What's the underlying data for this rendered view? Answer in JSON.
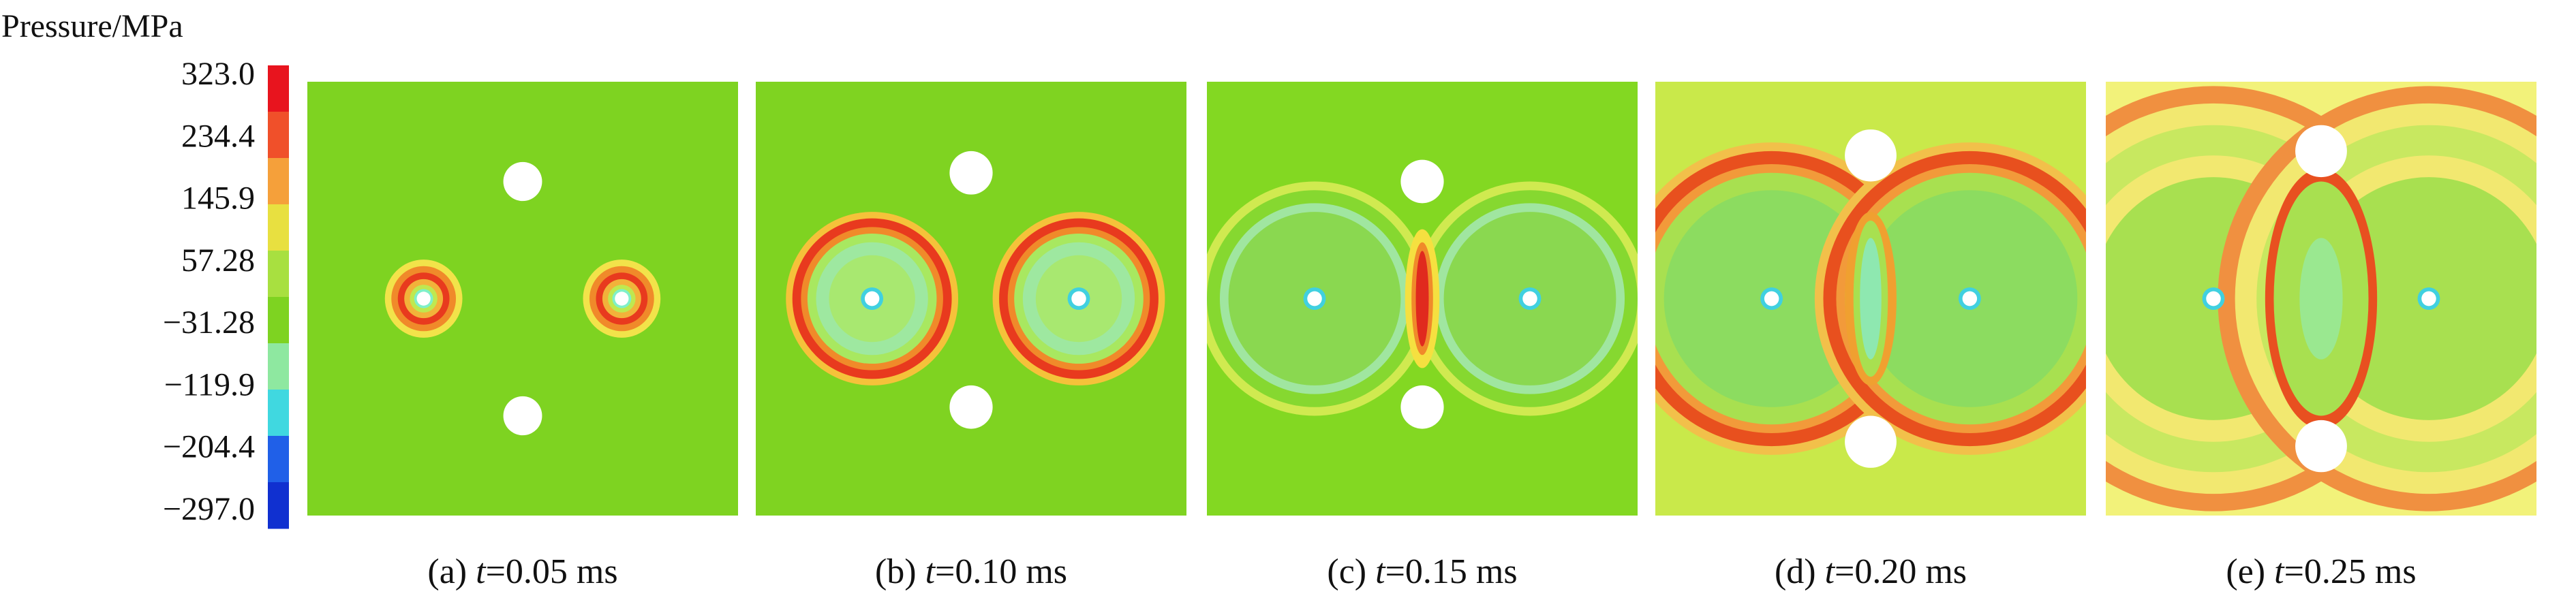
{
  "colorbar": {
    "title": "Pressure/MPa",
    "ticks": [
      "323.0",
      "234.4",
      "145.9",
      "57.28",
      "−31.28",
      "−119.9",
      "−204.4",
      "−297.0"
    ],
    "colors": [
      "#e8141e",
      "#f0502a",
      "#f5a03a",
      "#e8e040",
      "#a8e040",
      "#7ed321",
      "#8ee8a0",
      "#40d8e0",
      "#2060e8",
      "#1030d0"
    ]
  },
  "panels": [
    {
      "label": "(a)",
      "variable": "t",
      "value": "=0.05 ms"
    },
    {
      "label": "(b)",
      "variable": "t",
      "value": "=0.10 ms"
    },
    {
      "label": "(c)",
      "variable": "t",
      "value": "=0.15 ms"
    },
    {
      "label": "(d)",
      "variable": "t",
      "value": "=0.20 ms"
    },
    {
      "label": "(e)",
      "variable": "t",
      "value": "=0.25 ms"
    }
  ]
}
